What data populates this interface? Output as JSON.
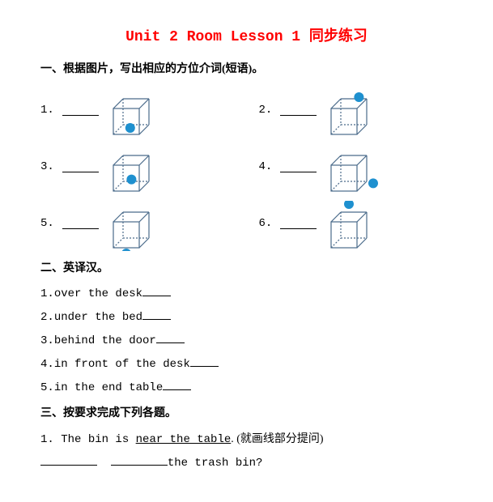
{
  "title": {
    "text": "Unit 2 Room Lesson 1 同步练习",
    "color": "#ff0000",
    "fontsize": 18
  },
  "section1": {
    "heading": "一、根据图片，写出相应的方位介词(短语)。",
    "items": [
      {
        "num": "1.",
        "ball": "in"
      },
      {
        "num": "2.",
        "ball": "on"
      },
      {
        "num": "3.",
        "ball": "front"
      },
      {
        "num": "4.",
        "ball": "beside_right"
      },
      {
        "num": "5.",
        "ball": "under"
      },
      {
        "num": "6.",
        "ball": "above"
      }
    ],
    "cube_style": {
      "stroke": "#4a6a8a",
      "stroke_width": 1.2,
      "dash": "2,2",
      "ball_color": "#1e90cf",
      "ball_radius": 6,
      "box_size": 32,
      "depth": 12
    }
  },
  "section2": {
    "heading": "二、英译汉。",
    "items": [
      {
        "num": "1.",
        "text": "over the desk"
      },
      {
        "num": "2.",
        "text": "under the bed"
      },
      {
        "num": "3.",
        "text": "behind the door"
      },
      {
        "num": "4.",
        "text": "in front of the desk"
      },
      {
        "num": "5.",
        "text": "in the end table"
      }
    ]
  },
  "section3": {
    "heading": "三、按要求完成下列各题。",
    "item1": {
      "num": "1.",
      "pre": " The bin is ",
      "underline": "near the table",
      "post": ". (就画线部分提问)",
      "tail": "the trash bin?"
    }
  }
}
